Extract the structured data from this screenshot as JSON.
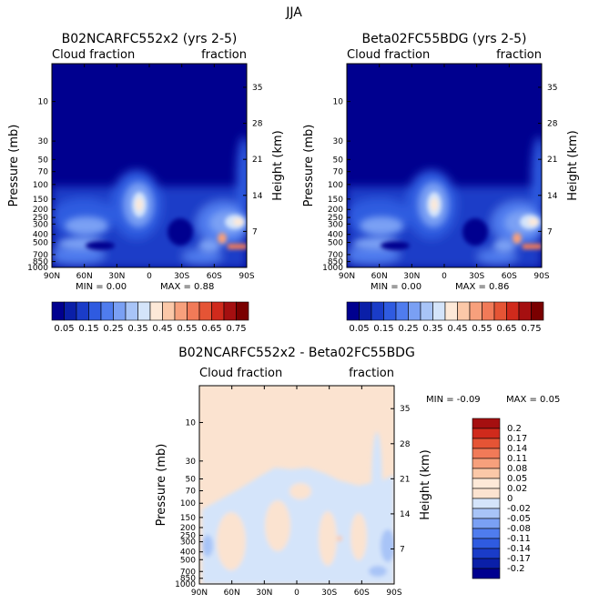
{
  "page_title": "JJA",
  "chart_data": [
    {
      "type": "heatmap",
      "title": "B02NCARFC552x2 (yrs 2-5)",
      "left_label": "Cloud fraction",
      "right_label": "fraction",
      "ylabel": "Pressure (mb)",
      "ylabel_right": "Height (km)",
      "x_ticks": [
        "90N",
        "60N",
        "30N",
        "0",
        "30S",
        "60S",
        "90S"
      ],
      "y_ticks": [
        "10",
        "30",
        "50",
        "70",
        "100",
        "150",
        "200",
        "250",
        "300",
        "400",
        "500",
        "700",
        "850",
        "1000"
      ],
      "y_right_ticks": [
        "35",
        "28",
        "21",
        "14",
        "7"
      ],
      "min_text": "MIN =     0.00",
      "max_text": "MAX =     0.88",
      "colorbar_labels": [
        "0.05",
        "0.15",
        "0.25",
        "0.35",
        "0.45",
        "0.55",
        "0.65",
        "0.75"
      ],
      "colorbar_colors": [
        "#00008f",
        "#0a1fa8",
        "#1a3cc8",
        "#2f5be0",
        "#4f7cee",
        "#7aa0f4",
        "#a8c4f7",
        "#d4e4fa",
        "#fde9d8",
        "#fbc8a8",
        "#f7a07c",
        "#f17a58",
        "#e55435",
        "#d02a1c",
        "#a50f10",
        "#7a0000"
      ]
    },
    {
      "type": "heatmap",
      "title": "Beta02FC55BDG (yrs 2-5)",
      "left_label": "Cloud fraction",
      "right_label": "fraction",
      "ylabel": "Pressure (mb)",
      "ylabel_right": "Height (km)",
      "x_ticks": [
        "90N",
        "60N",
        "30N",
        "0",
        "30S",
        "60S",
        "90S"
      ],
      "y_ticks": [
        "10",
        "30",
        "50",
        "70",
        "100",
        "150",
        "200",
        "250",
        "300",
        "400",
        "500",
        "700",
        "850",
        "1000"
      ],
      "y_right_ticks": [
        "35",
        "28",
        "21",
        "14",
        "7"
      ],
      "min_text": "MIN =     0.00",
      "max_text": "MAX =     0.86",
      "colorbar_labels": [
        "0.05",
        "0.15",
        "0.25",
        "0.35",
        "0.45",
        "0.55",
        "0.65",
        "0.75"
      ],
      "colorbar_colors": [
        "#00008f",
        "#0a1fa8",
        "#1a3cc8",
        "#2f5be0",
        "#4f7cee",
        "#7aa0f4",
        "#a8c4f7",
        "#d4e4fa",
        "#fde9d8",
        "#fbc8a8",
        "#f7a07c",
        "#f17a58",
        "#e55435",
        "#d02a1c",
        "#a50f10",
        "#7a0000"
      ]
    },
    {
      "type": "heatmap",
      "title": "B02NCARFC552x2 - Beta02FC55BDG",
      "left_label": "Cloud fraction",
      "right_label": "fraction",
      "ylabel": "Pressure (mb)",
      "ylabel_right": "Height (km)",
      "x_ticks": [
        "90N",
        "60N",
        "30N",
        "0",
        "30S",
        "60S",
        "90S"
      ],
      "y_ticks": [
        "10",
        "30",
        "50",
        "70",
        "100",
        "150",
        "200",
        "250",
        "300",
        "400",
        "500",
        "700",
        "850",
        "1000"
      ],
      "y_right_ticks": [
        "35",
        "28",
        "21",
        "14",
        "7"
      ],
      "min_text": "MIN =   -0.09",
      "max_text": "MAX =     0.05",
      "colorbar_labels": [
        "0.2",
        "0.17",
        "0.14",
        "0.11",
        "0.08",
        "0.05",
        "0.02",
        "0",
        "-0.02",
        "-0.05",
        "-0.08",
        "-0.11",
        "-0.14",
        "-0.17",
        "-0.2"
      ],
      "colorbar_colors": [
        "#a50f10",
        "#d02a1c",
        "#e55435",
        "#f17a58",
        "#f7a07c",
        "#fbc8a8",
        "#fde9d8",
        "#fbe3d0",
        "#d4e4fa",
        "#a8c4f7",
        "#7aa0f4",
        "#4f7cee",
        "#2f5be0",
        "#1a3cc8",
        "#0a1fa8",
        "#00008f"
      ]
    }
  ]
}
